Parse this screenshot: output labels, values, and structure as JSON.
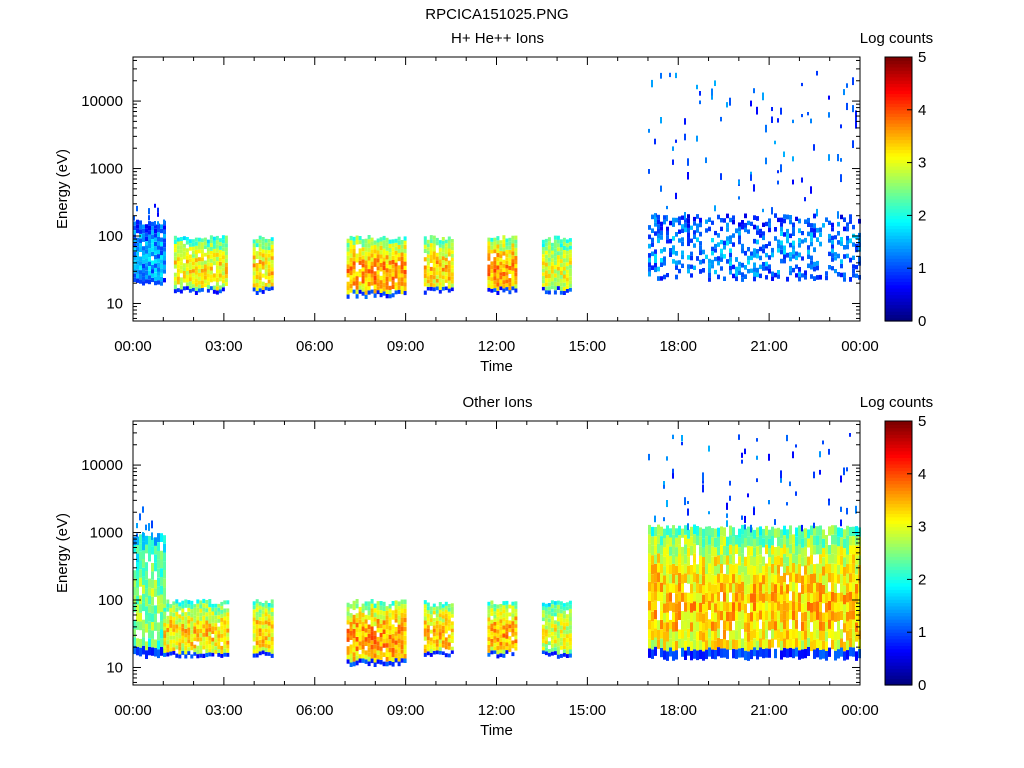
{
  "figure_title": "RPCICA151025.PNG",
  "chart_data": [
    {
      "type": "heatmap",
      "title": "H+ He++ Ions",
      "xlabel": "Time",
      "ylabel": "Energy (eV)",
      "x_tick_labels": [
        "00:00",
        "03:00",
        "06:00",
        "09:00",
        "12:00",
        "15:00",
        "18:00",
        "21:00",
        "00:00"
      ],
      "x_range_hours": [
        0,
        24
      ],
      "y_scale": "log",
      "y_tick_labels": [
        "10",
        "100",
        "1000",
        "10000"
      ],
      "y_range_eV": [
        5.5,
        45000
      ],
      "colorbar": {
        "label": "Log counts",
        "tick_labels": [
          "0",
          "1",
          "2",
          "3",
          "4",
          "5"
        ],
        "range": [
          0,
          5
        ]
      },
      "blocks": [
        {
          "t0": 0.0,
          "t1": 1.05,
          "e_lo": 22,
          "e_hi": 160,
          "level": 1.4,
          "tail_hi": 320
        },
        {
          "t0": 1.35,
          "t1": 3.1,
          "e_lo": 16,
          "e_hi": 95,
          "level": 3.2
        },
        {
          "t0": 3.95,
          "t1": 4.6,
          "e_lo": 16,
          "e_hi": 95,
          "level": 3.3
        },
        {
          "t0": 7.05,
          "t1": 9.0,
          "e_lo": 14,
          "e_hi": 95,
          "level": 3.6
        },
        {
          "t0": 9.6,
          "t1": 10.55,
          "e_lo": 16,
          "e_hi": 95,
          "level": 3.4
        },
        {
          "t0": 11.7,
          "t1": 12.6,
          "e_lo": 16,
          "e_hi": 95,
          "level": 3.6
        },
        {
          "t0": 13.5,
          "t1": 14.45,
          "e_lo": 16,
          "e_hi": 95,
          "level": 3.0
        },
        {
          "t0": 17.0,
          "t1": 24.0,
          "e_lo": 25,
          "e_hi": 200,
          "level": 1.3,
          "sparse": true,
          "tail_hi": 30000
        }
      ]
    },
    {
      "type": "heatmap",
      "title": "Other Ions",
      "xlabel": "Time",
      "ylabel": "Energy (eV)",
      "x_tick_labels": [
        "00:00",
        "03:00",
        "06:00",
        "09:00",
        "12:00",
        "15:00",
        "18:00",
        "21:00",
        "00:00"
      ],
      "x_range_hours": [
        0,
        24
      ],
      "y_scale": "log",
      "y_tick_labels": [
        "10",
        "100",
        "1000",
        "10000"
      ],
      "y_range_eV": [
        5.5,
        45000
      ],
      "colorbar": {
        "label": "Log counts",
        "tick_labels": [
          "0",
          "1",
          "2",
          "3",
          "4",
          "5"
        ],
        "range": [
          0,
          5
        ]
      },
      "blocks": [
        {
          "t0": 0.0,
          "t1": 1.0,
          "e_lo": 16,
          "e_hi": 900,
          "level": 2.6,
          "tail_hi": 3000
        },
        {
          "t0": 1.0,
          "t1": 3.1,
          "e_lo": 16,
          "e_hi": 95,
          "level": 3.3
        },
        {
          "t0": 3.95,
          "t1": 4.6,
          "e_lo": 16,
          "e_hi": 95,
          "level": 3.3
        },
        {
          "t0": 7.05,
          "t1": 9.0,
          "e_lo": 12,
          "e_hi": 95,
          "level": 3.6
        },
        {
          "t0": 9.6,
          "t1": 10.55,
          "e_lo": 16,
          "e_hi": 95,
          "level": 3.4
        },
        {
          "t0": 11.7,
          "t1": 12.6,
          "e_lo": 16,
          "e_hi": 95,
          "level": 3.5
        },
        {
          "t0": 13.5,
          "t1": 14.45,
          "e_lo": 16,
          "e_hi": 95,
          "level": 3.0
        },
        {
          "t0": 17.0,
          "t1": 24.0,
          "e_lo": 15,
          "e_hi": 1200,
          "level": 3.4,
          "tail_hi": 30000
        }
      ]
    }
  ]
}
